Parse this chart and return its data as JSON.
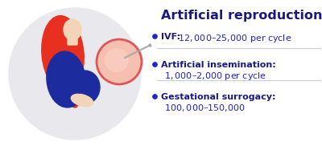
{
  "title": "Artificial reproduction",
  "title_color": "#1a1a7e",
  "title_fontsize": 11.5,
  "bullet_color": "#2222cc",
  "text_dark": "#1a1a7e",
  "text_blue": "#2222cc",
  "bg_color": "#ffffff",
  "circle_bg": "#e8e8ed",
  "egg_fill": "#f5c0b0",
  "egg_edge": "#e05555",
  "needle_color": "#aaaaaa",
  "hair_color": "#e83020",
  "body_color": "#1c2b9e",
  "skin_color": "#f2d5b8",
  "sep_color": "#ccccdd",
  "separator_alpha": 0.8,
  "bullet_points": [
    {
      "line1_bold": "IVF: ",
      "line1_value": "$12,000–$25,000 per cycle",
      "line2": null
    },
    {
      "line1_bold": "Artificial insemination:",
      "line1_value": null,
      "line2": "$1,000–$2,000 per cycle"
    },
    {
      "line1_bold": "Gestational surrogacy:",
      "line1_value": null,
      "line2": "$100,000–$150,000"
    }
  ]
}
